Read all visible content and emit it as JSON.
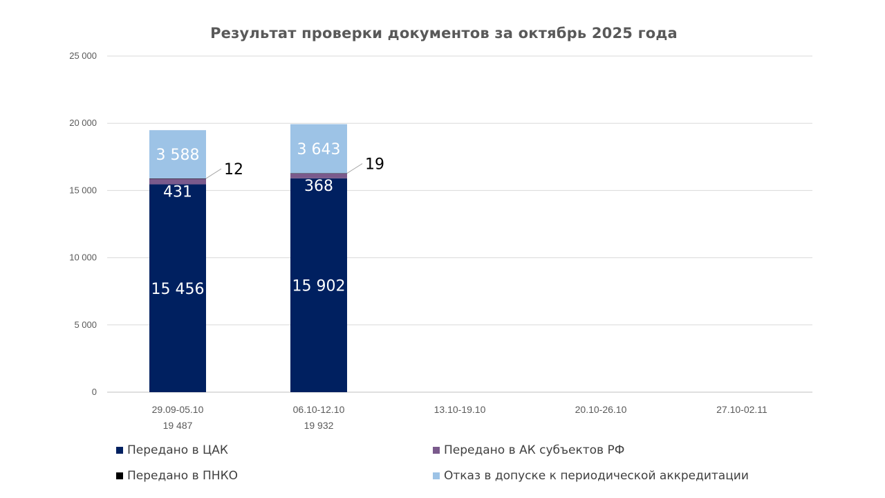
{
  "chart_data": {
    "type": "bar",
    "stacked": true,
    "title": "Результат проверки документов за октябрь 2025 года",
    "categories": [
      "29.09-05.10",
      "06.10-12.10",
      "13.10-19.10",
      "20.10-26.10",
      "27.10-02.11"
    ],
    "totals": [
      "19 487",
      "19 932",
      "",
      "",
      ""
    ],
    "ylim": [
      0,
      25000
    ],
    "yticks": [
      0,
      5000,
      10000,
      15000,
      20000,
      25000
    ],
    "ytick_labels": [
      "0",
      "5 000",
      "10 000",
      "15 000",
      "20 000",
      "25 000"
    ],
    "grid": true,
    "legend_position": "bottom",
    "series": [
      {
        "name": "Передано в ЦАК",
        "color": "#002060",
        "values": [
          15456,
          15902,
          null,
          null,
          null
        ],
        "labels": [
          "15 456",
          "15 902",
          "",
          "",
          ""
        ]
      },
      {
        "name": "Передано в АК субъектов РФ",
        "color": "#7A5A8C",
        "values": [
          431,
          368,
          null,
          null,
          null
        ],
        "labels": [
          "431",
          "368",
          "",
          "",
          ""
        ]
      },
      {
        "name": "Передано в ПНКО",
        "color": "#000000",
        "values": [
          12,
          19,
          null,
          null,
          null
        ],
        "labels": [
          "12",
          "19",
          "",
          "",
          ""
        ]
      },
      {
        "name": "Отказ в допуске к периодической аккредитации",
        "color": "#9DC3E6",
        "values": [
          3588,
          3643,
          null,
          null,
          null
        ],
        "labels": [
          "3 588",
          "3 643",
          "",
          "",
          ""
        ]
      }
    ]
  }
}
